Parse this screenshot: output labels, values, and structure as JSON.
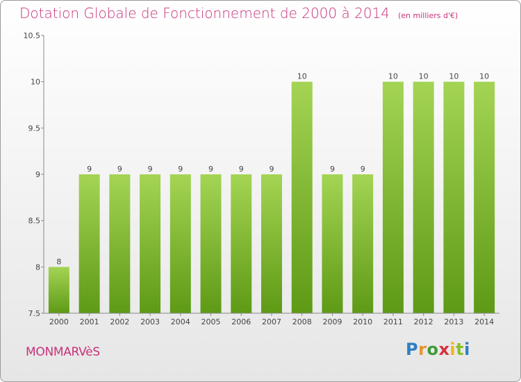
{
  "header": {
    "title": "Dotation Globale de Fonctionnement de 2000 à 2014",
    "unit": "(en milliers d'€)"
  },
  "commune": "MONMARVèS",
  "logo": {
    "text": "Proxiti"
  },
  "colors": {
    "bar_light": "#a4d454",
    "bar_dark": "#5e9a16",
    "title": "#c8327a",
    "axis": "#888888"
  },
  "chart_data": {
    "type": "bar",
    "title": "Dotation Globale de Fonctionnement de 2000 à 2014",
    "subtitle": "(en milliers d'€)",
    "xlabel": "",
    "ylabel": "",
    "categories": [
      "2000",
      "2001",
      "2002",
      "2003",
      "2004",
      "2005",
      "2006",
      "2007",
      "2008",
      "2009",
      "2010",
      "2011",
      "2012",
      "2013",
      "2014"
    ],
    "values": [
      8,
      9,
      9,
      9,
      9,
      9,
      9,
      9,
      10,
      9,
      9,
      10,
      10,
      10,
      10
    ],
    "ylim": [
      7.5,
      10.5
    ],
    "yticks": [
      "7.5",
      "8",
      "8.5",
      "9",
      "9.5",
      "10",
      "10.5"
    ],
    "grid": false
  }
}
